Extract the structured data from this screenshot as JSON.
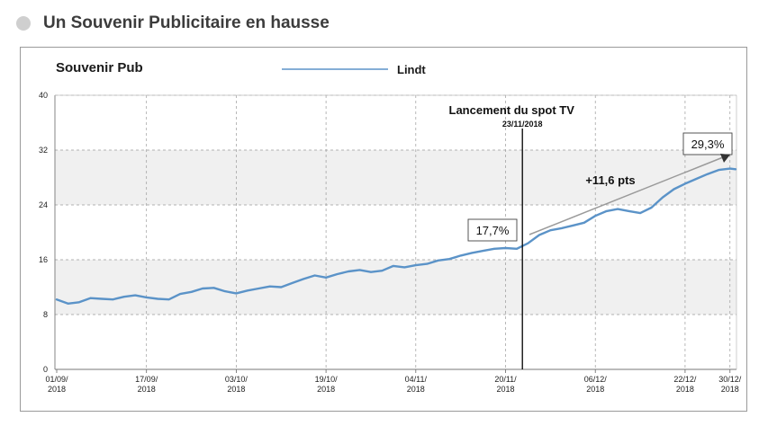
{
  "page": {
    "title": "Un Souvenir Publicitaire en hausse"
  },
  "chart_data": {
    "type": "line",
    "title": "Souvenir Pub",
    "xlabel": "",
    "ylabel": "",
    "ylim": [
      0,
      40
    ],
    "yticks": [
      "0",
      "8",
      "16",
      "24",
      "32",
      "40"
    ],
    "xticks": [
      {
        "top": "01/09/",
        "bottom": "2018"
      },
      {
        "top": "17/09/",
        "bottom": "2018"
      },
      {
        "top": "03/10/",
        "bottom": "2018"
      },
      {
        "top": "19/10/",
        "bottom": "2018"
      },
      {
        "top": "04/11/",
        "bottom": "2018"
      },
      {
        "top": "20/11/",
        "bottom": "2018"
      },
      {
        "top": "06/12/",
        "bottom": "2018"
      },
      {
        "top": "22/12/",
        "bottom": "2018"
      },
      {
        "top": "30/12/",
        "bottom": "2018"
      }
    ],
    "legend": {
      "placement": "top-center",
      "label": "Lindt"
    },
    "grid": true,
    "colors": {
      "line": "#5b93c8",
      "band": "#f0f0f0",
      "grid": "#9a9a9a",
      "arrow": "#9a9a9a"
    },
    "series": [
      {
        "name": "Lindt",
        "x": [
          "2018-09-01",
          "2018-09-03",
          "2018-09-05",
          "2018-09-07",
          "2018-09-09",
          "2018-09-11",
          "2018-09-13",
          "2018-09-15",
          "2018-09-17",
          "2018-09-19",
          "2018-09-21",
          "2018-09-23",
          "2018-09-25",
          "2018-09-27",
          "2018-09-29",
          "2018-10-01",
          "2018-10-03",
          "2018-10-05",
          "2018-10-07",
          "2018-10-09",
          "2018-10-11",
          "2018-10-13",
          "2018-10-15",
          "2018-10-17",
          "2018-10-19",
          "2018-10-21",
          "2018-10-23",
          "2018-10-25",
          "2018-10-27",
          "2018-10-29",
          "2018-10-31",
          "2018-11-02",
          "2018-11-04",
          "2018-11-06",
          "2018-11-08",
          "2018-11-10",
          "2018-11-12",
          "2018-11-14",
          "2018-11-16",
          "2018-11-18",
          "2018-11-20",
          "2018-11-22",
          "2018-11-24",
          "2018-11-26",
          "2018-11-28",
          "2018-11-30",
          "2018-12-02",
          "2018-12-04",
          "2018-12-06",
          "2018-12-08",
          "2018-12-10",
          "2018-12-12",
          "2018-12-14",
          "2018-12-16",
          "2018-12-18",
          "2018-12-20",
          "2018-12-22",
          "2018-12-24",
          "2018-12-26",
          "2018-12-28",
          "2018-12-30",
          "2018-12-31"
        ],
        "values": [
          10.2,
          9.6,
          9.8,
          10.4,
          10.3,
          10.2,
          10.6,
          10.8,
          10.5,
          10.3,
          10.2,
          11.0,
          11.3,
          11.8,
          11.9,
          11.4,
          11.1,
          11.5,
          11.8,
          12.1,
          12.0,
          12.6,
          13.2,
          13.7,
          13.4,
          13.9,
          14.3,
          14.5,
          14.2,
          14.4,
          15.1,
          14.9,
          15.2,
          15.4,
          15.9,
          16.1,
          16.6,
          17.0,
          17.3,
          17.6,
          17.7,
          17.6,
          18.4,
          19.6,
          20.3,
          20.6,
          21.0,
          21.4,
          22.4,
          23.1,
          23.4,
          23.1,
          22.8,
          23.6,
          25.1,
          26.3,
          27.1,
          27.8,
          28.5,
          29.1,
          29.3,
          29.2
        ]
      }
    ],
    "annotations": {
      "launch_title": "Lancement du spot TV",
      "launch_date": "23/11/2018",
      "launch_x": "2018-11-23",
      "start_label": "17,7%",
      "end_label": "29,3%",
      "delta_label": "+11,6 pts"
    }
  }
}
